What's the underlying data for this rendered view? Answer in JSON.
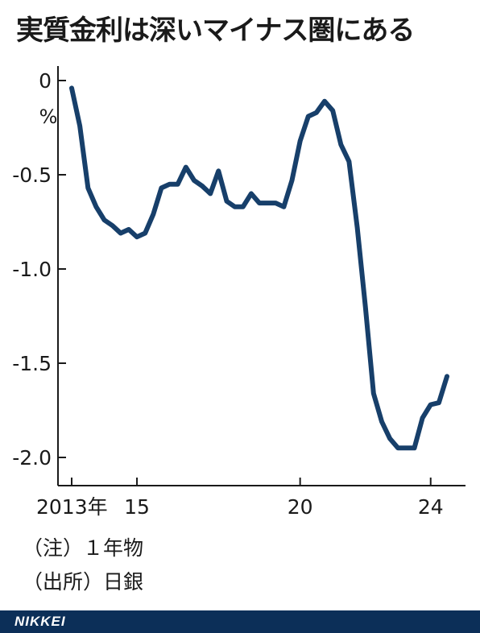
{
  "title": "実質金利は深いマイナス圏にある",
  "notes": {
    "note": "（注）１年物",
    "source": "（出所）日銀"
  },
  "brand": "NIKKEI",
  "colors": {
    "line": "#173f6a",
    "footer": "#0c2f58",
    "axis": "#1a1a1a"
  },
  "chart_data": {
    "type": "line",
    "title": "実質金利は深いマイナス圏にある",
    "xlabel": "",
    "ylabel": "",
    "y_unit": "%",
    "ylim": [
      -2.15,
      0.05
    ],
    "xlim": [
      2013,
      2025.1
    ],
    "y_ticks": [
      0,
      -0.5,
      -1.0,
      -1.5,
      -2.0
    ],
    "y_tick_labels": [
      "0",
      "-0.5",
      "-1.0",
      "-1.5",
      "-2.0"
    ],
    "x_ticks": [
      2013,
      2015,
      2020,
      2024
    ],
    "x_tick_labels": [
      "2013年",
      "15",
      "20",
      "24"
    ],
    "grid": false,
    "legend": "none",
    "series": [
      {
        "x": [
          2013.0,
          2013.25,
          2013.5,
          2013.75,
          2014.0,
          2014.25,
          2014.5,
          2014.75,
          2015.0,
          2015.25,
          2015.5,
          2015.75,
          2016.0,
          2016.25,
          2016.5,
          2016.75,
          2017.0,
          2017.25,
          2017.5,
          2017.75,
          2018.0,
          2018.25,
          2018.5,
          2018.75,
          2019.0,
          2019.25,
          2019.5,
          2019.75,
          2020.0,
          2020.25,
          2020.5,
          2020.75,
          2021.0,
          2021.25,
          2021.5,
          2021.75,
          2022.0,
          2022.25,
          2022.5,
          2022.75,
          2023.0,
          2023.25,
          2023.5,
          2023.75,
          2024.0,
          2024.25,
          2024.5
        ],
        "y": [
          -0.04,
          -0.24,
          -0.57,
          -0.67,
          -0.74,
          -0.77,
          -0.81,
          -0.79,
          -0.83,
          -0.81,
          -0.71,
          -0.57,
          -0.55,
          -0.55,
          -0.46,
          -0.53,
          -0.56,
          -0.6,
          -0.48,
          -0.64,
          -0.67,
          -0.67,
          -0.6,
          -0.65,
          -0.65,
          -0.65,
          -0.67,
          -0.53,
          -0.32,
          -0.19,
          -0.17,
          -0.11,
          -0.16,
          -0.34,
          -0.43,
          -0.78,
          -1.2,
          -1.66,
          -1.81,
          -1.9,
          -1.95,
          -1.95,
          -1.95,
          -1.79,
          -1.72,
          -1.71,
          -1.57
        ]
      }
    ]
  }
}
